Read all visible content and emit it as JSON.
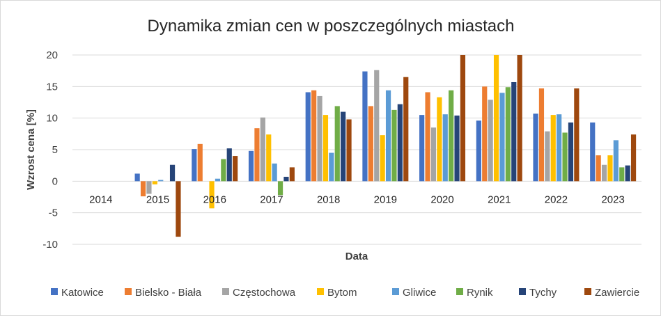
{
  "chart_data": {
    "type": "bar",
    "title": "Dynamika zmian cen w poszczególnych  miastach",
    "xlabel": "Data",
    "ylabel": "Wzrost cena [%]",
    "ylim": [
      -10,
      20
    ],
    "yticks": [
      -10,
      -5,
      0,
      5,
      10,
      15,
      20
    ],
    "grid": true,
    "legend_position": "bottom",
    "categories": [
      "2014",
      "2015",
      "2016",
      "2017",
      "2018",
      "2019",
      "2020",
      "2021",
      "2022",
      "2023"
    ],
    "series": [
      {
        "name": "Katowice",
        "color": "#4472c4",
        "values": [
          0,
          1.2,
          5.1,
          4.8,
          14.1,
          17.4,
          10.5,
          9.6,
          10.7,
          9.3
        ]
      },
      {
        "name": "Bielsko - Biała",
        "color": "#ed7d31",
        "values": [
          0,
          -2.4,
          5.9,
          8.4,
          14.4,
          11.9,
          14.1,
          15.0,
          14.7,
          4.1
        ]
      },
      {
        "name": "Częstochowa",
        "color": "#a5a5a5",
        "values": [
          0,
          -2.0,
          0.0,
          10.1,
          13.5,
          17.6,
          8.5,
          12.9,
          7.9,
          2.6
        ]
      },
      {
        "name": "Bytom",
        "color": "#ffc000",
        "values": [
          0,
          -0.5,
          -4.3,
          7.4,
          10.5,
          7.3,
          13.3,
          20.0,
          10.5,
          4.1
        ]
      },
      {
        "name": "Gliwice",
        "color": "#5b9bd5",
        "values": [
          0,
          0.2,
          0.4,
          2.8,
          4.5,
          14.4,
          10.6,
          14.0,
          10.6,
          6.5
        ]
      },
      {
        "name": "Rynik",
        "color": "#70ad47",
        "values": [
          0,
          0.0,
          3.5,
          -2.2,
          11.9,
          11.3,
          14.4,
          14.9,
          7.7,
          2.2
        ]
      },
      {
        "name": "Tychy",
        "color": "#264478",
        "values": [
          0,
          2.6,
          5.2,
          0.7,
          11.0,
          12.2,
          10.4,
          15.7,
          9.3,
          2.5
        ]
      },
      {
        "name": "Zawiercie",
        "color": "#9e480e",
        "values": [
          0,
          -8.8,
          4.0,
          2.2,
          9.8,
          16.5,
          20.0,
          20.0,
          14.7,
          7.4
        ]
      }
    ]
  }
}
